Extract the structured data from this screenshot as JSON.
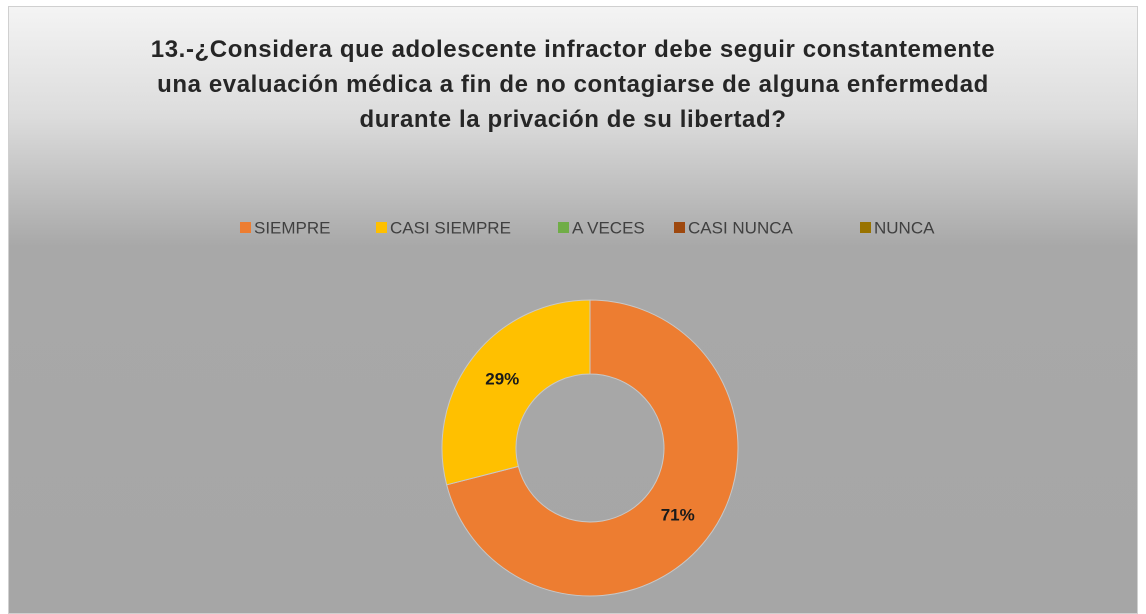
{
  "chart_data": {
    "type": "donut",
    "title": "13.-¿Considera que adolescente infractor debe seguir constantemente una evaluación médica a fin de no contagiarse de alguna enfermedad durante la privación de su libertad?",
    "categories": [
      "SIEMPRE",
      "CASI SIEMPRE",
      "A VECES",
      "CASI NUNCA",
      "NUNCA"
    ],
    "values": [
      71,
      29,
      0,
      0,
      0
    ],
    "value_labels": [
      "71%",
      "29%",
      null,
      null,
      null
    ],
    "colors": [
      "#ed7d31",
      "#ffc000",
      "#70ad47",
      "#9e480e",
      "#997300"
    ],
    "legend": "top"
  }
}
